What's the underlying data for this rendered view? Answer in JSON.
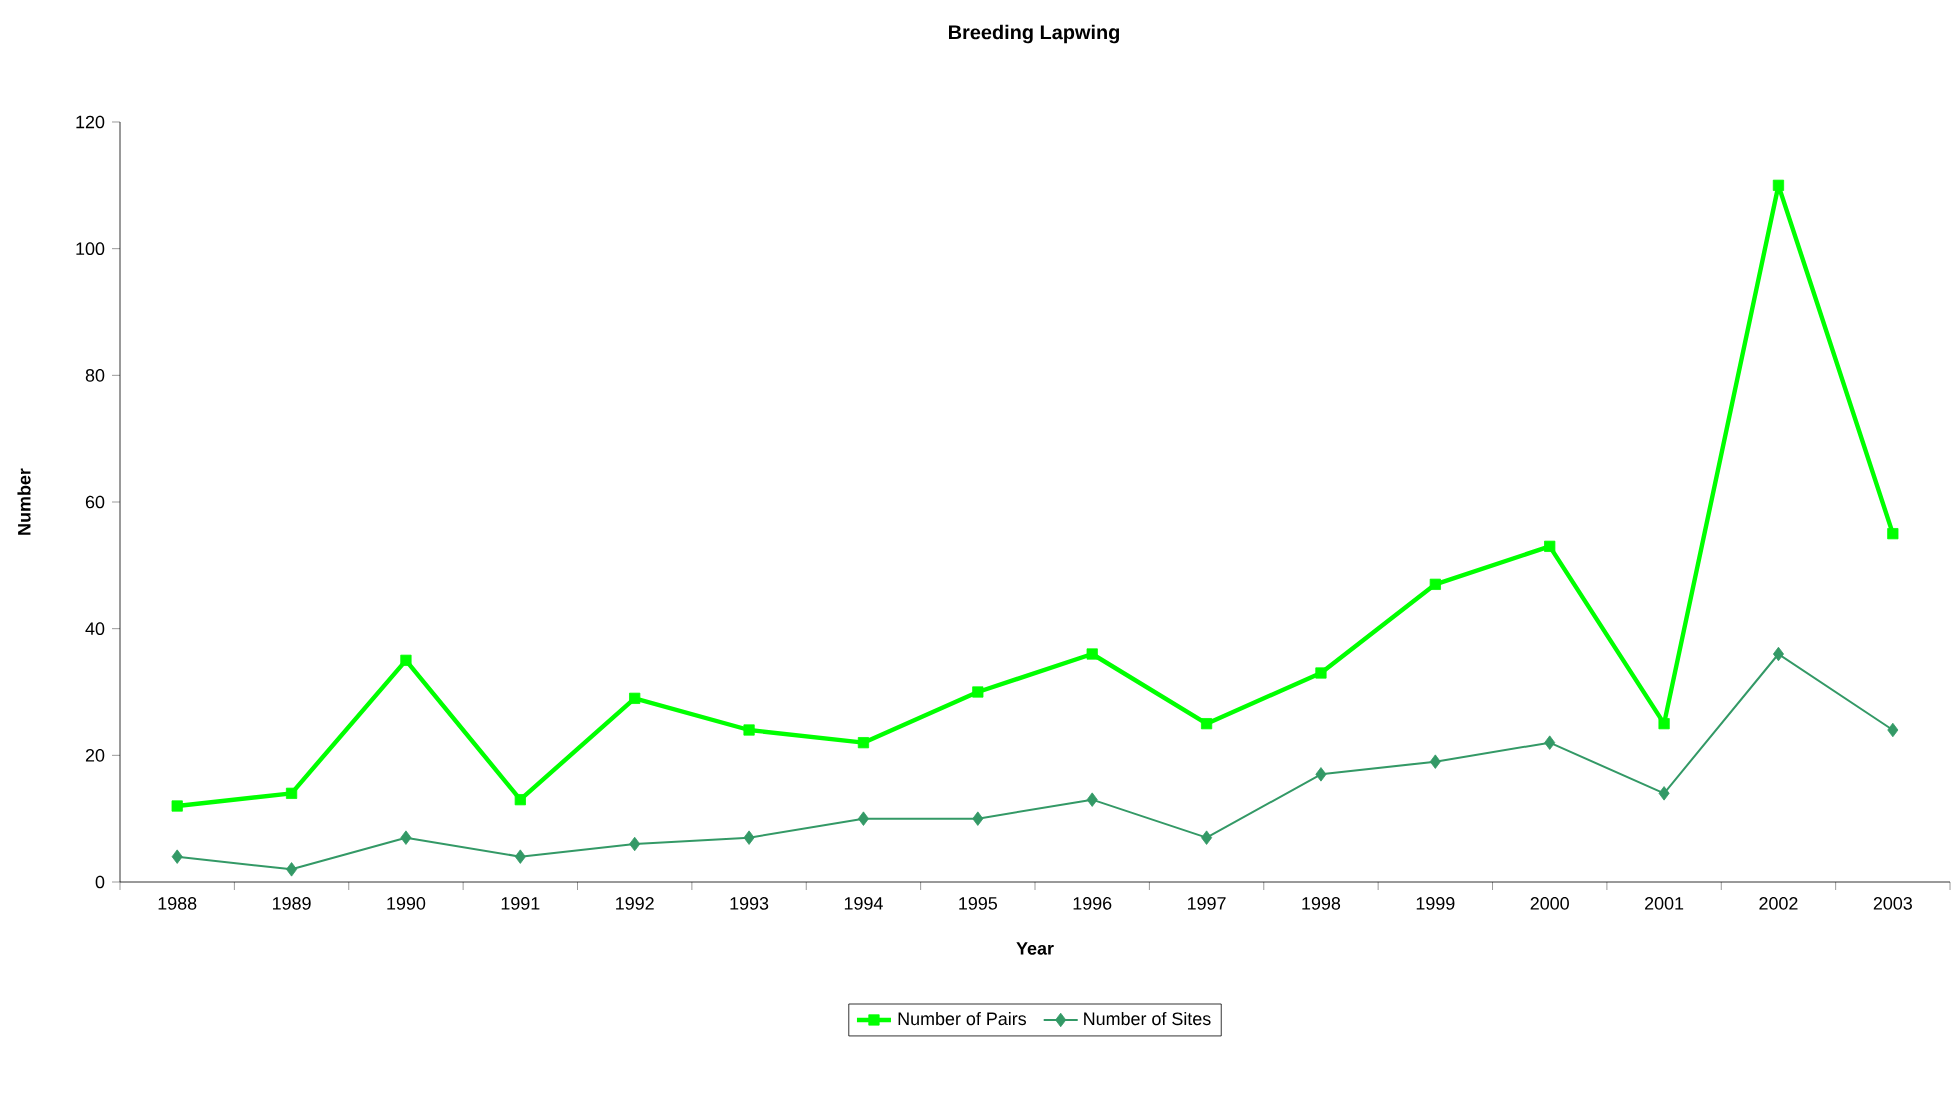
{
  "chart_data": {
    "type": "line",
    "title": "Breeding Lapwing",
    "xlabel": "Year",
    "ylabel": "Number",
    "categories": [
      "1988",
      "1989",
      "1990",
      "1991",
      "1992",
      "1993",
      "1994",
      "1995",
      "1996",
      "1997",
      "1998",
      "1999",
      "2000",
      "2001",
      "2002",
      "2003"
    ],
    "series": [
      {
        "name": "Number of Pairs",
        "color": "#00ff00",
        "marker": "square",
        "values": [
          12,
          14,
          35,
          13,
          29,
          24,
          22,
          30,
          36,
          25,
          33,
          47,
          53,
          25,
          110,
          55
        ]
      },
      {
        "name": "Number of Sites",
        "color": "#339966",
        "marker": "diamond",
        "values": [
          4,
          2,
          7,
          4,
          6,
          7,
          10,
          10,
          13,
          7,
          17,
          19,
          22,
          14,
          36,
          24
        ]
      }
    ],
    "ylim": [
      0,
      120
    ],
    "yticks": [
      0,
      20,
      40,
      60,
      80,
      100,
      120
    ],
    "grid": false,
    "legend": "bottom",
    "line_style": "solid"
  }
}
